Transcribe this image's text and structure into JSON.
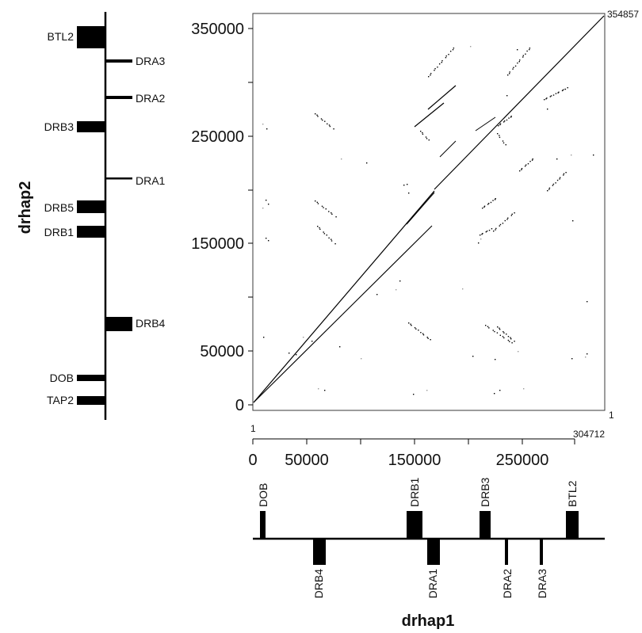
{
  "colors": {
    "ink": "#000000",
    "frame": "#3a3a3a",
    "dot_faint": "#9a9a9a",
    "background": "#ffffff"
  },
  "y_track": {
    "axis_label": "drhap2",
    "genes": [
      {
        "name": "BTL2",
        "side": "left",
        "size": "large"
      },
      {
        "name": "DRA3",
        "side": "right",
        "size": "line"
      },
      {
        "name": "DRA2",
        "side": "right",
        "size": "line"
      },
      {
        "name": "DRB3",
        "side": "left",
        "size": "medium"
      },
      {
        "name": "DRA1",
        "side": "right",
        "size": "line"
      },
      {
        "name": "DRB5",
        "side": "left",
        "size": "medium"
      },
      {
        "name": "DRB1",
        "side": "left",
        "size": "medium"
      },
      {
        "name": "DRB4",
        "side": "right",
        "size": "medium"
      },
      {
        "name": "DOB",
        "side": "left",
        "size": "small"
      },
      {
        "name": "TAP2",
        "side": "left",
        "size": "small"
      }
    ]
  },
  "x_track": {
    "axis_label": "drhap1",
    "genes": [
      {
        "name": "DOB",
        "side": "above",
        "size": "small"
      },
      {
        "name": "DRB4",
        "side": "below",
        "size": "medium"
      },
      {
        "name": "DRB1",
        "side": "above",
        "size": "large"
      },
      {
        "name": "DRA1",
        "side": "below",
        "size": "medium"
      },
      {
        "name": "DRB3",
        "side": "above",
        "size": "medium"
      },
      {
        "name": "DRA2",
        "side": "below",
        "size": "line"
      },
      {
        "name": "DRA3",
        "side": "below",
        "size": "line"
      },
      {
        "name": "BTL2",
        "side": "above",
        "size": "medium"
      }
    ]
  },
  "dotplot": {
    "x_range": [
      1,
      304712
    ],
    "y_range": [
      1,
      354857
    ],
    "x_ticks": [
      "0",
      "50000",
      "150000",
      "250000"
    ],
    "y_ticks": [
      "0",
      "50000",
      "150000",
      "250000",
      "350000"
    ],
    "x_start_label": "1",
    "x_end_label": "304712",
    "y_start_label": "1",
    "y_end_label": "354857"
  }
}
